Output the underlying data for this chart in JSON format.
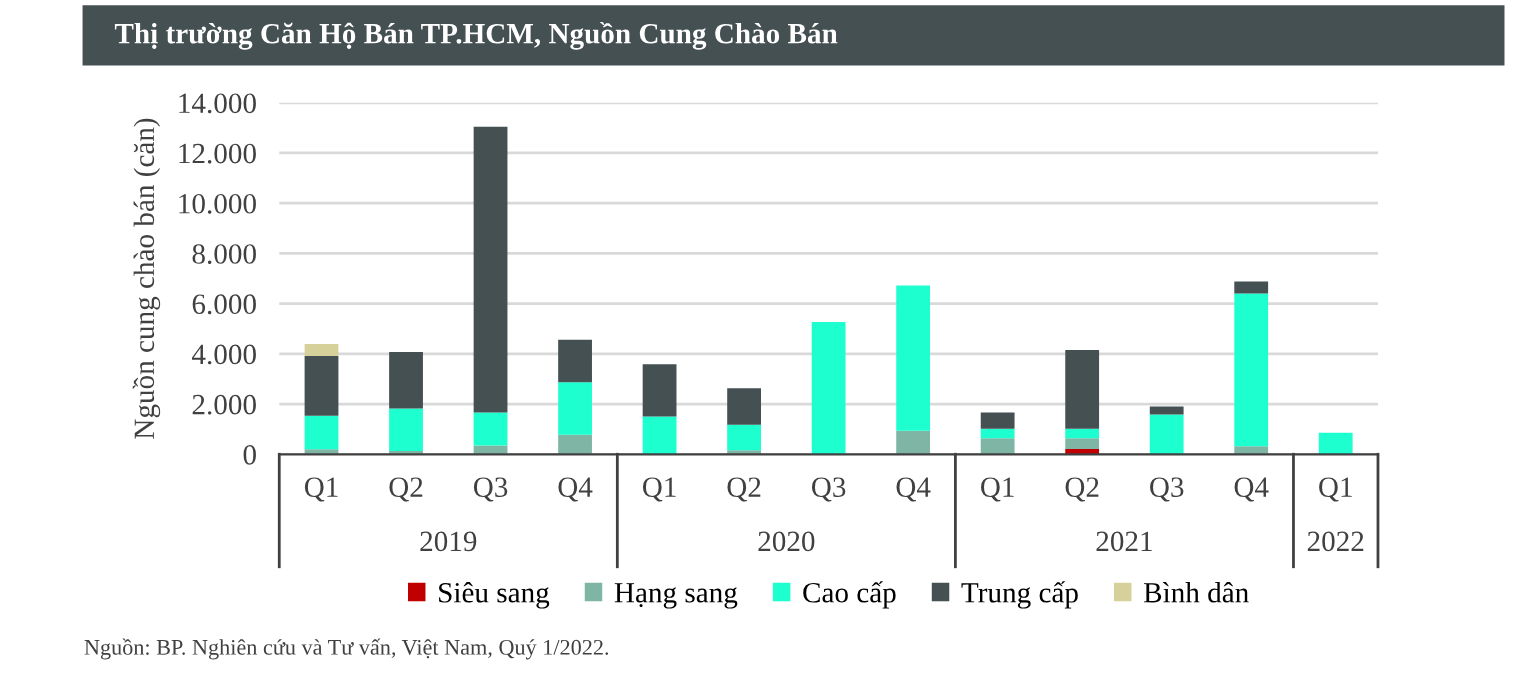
{
  "chart_data": {
    "type": "bar",
    "title": "Thị trường Căn Hộ Bán TP.HCM, Nguồn Cung Chào Bán",
    "ylabel": "Nguồn cung chào bán (căn)",
    "categories": [
      "Q1",
      "Q2",
      "Q3",
      "Q4",
      "Q1",
      "Q2",
      "Q3",
      "Q4",
      "Q1",
      "Q2",
      "Q3",
      "Q4",
      "Q1"
    ],
    "stacked": true,
    "series": [
      {
        "name": "Siêu sang",
        "color": "#c00000",
        "values": [
          0,
          0,
          0,
          0,
          0,
          0,
          0,
          0,
          0,
          210,
          0,
          0,
          0
        ]
      },
      {
        "name": "Hạng sang",
        "color": "#7fb5a5",
        "values": [
          200,
          130,
          350,
          780,
          0,
          160,
          0,
          940,
          640,
          430,
          0,
          320,
          0
        ]
      },
      {
        "name": "Cao cấp",
        "color": "#1effcf",
        "values": [
          1330,
          1690,
          1310,
          2090,
          1500,
          1020,
          5270,
          5780,
          380,
          380,
          1580,
          6080,
          860
        ]
      },
      {
        "name": "Trung cấp",
        "color": "#455052",
        "values": [
          2380,
          2250,
          11380,
          1690,
          2090,
          1450,
          0,
          0,
          640,
          3130,
          320,
          480,
          0
        ]
      },
      {
        "name": "Bình dân",
        "color": "#d6d09a",
        "values": [
          480,
          0,
          0,
          0,
          0,
          0,
          0,
          0,
          0,
          0,
          0,
          0,
          0
        ]
      }
    ],
    "ylim": [
      0,
      14000
    ],
    "yticks": [
      0,
      {
        "value": 2000,
        "label": "2.000"
      },
      {
        "value": 4000,
        "label": "4.000"
      },
      {
        "value": 6000,
        "label": "6.000"
      },
      {
        "value": 8000,
        "label": "8.000"
      },
      {
        "value": 10000,
        "label": "10.000"
      },
      {
        "value": 12000,
        "label": "12.000"
      },
      {
        "value": 14000,
        "label": "14.000"
      }
    ],
    "grid": "y",
    "legend": "bottom",
    "annotations": [
      "2019",
      "2020",
      "2021",
      "2022",
      "Nguồn: BP. Nghiên cứu và Tư vấn, Việt Nam, Quý 1/2022."
    ]
  }
}
